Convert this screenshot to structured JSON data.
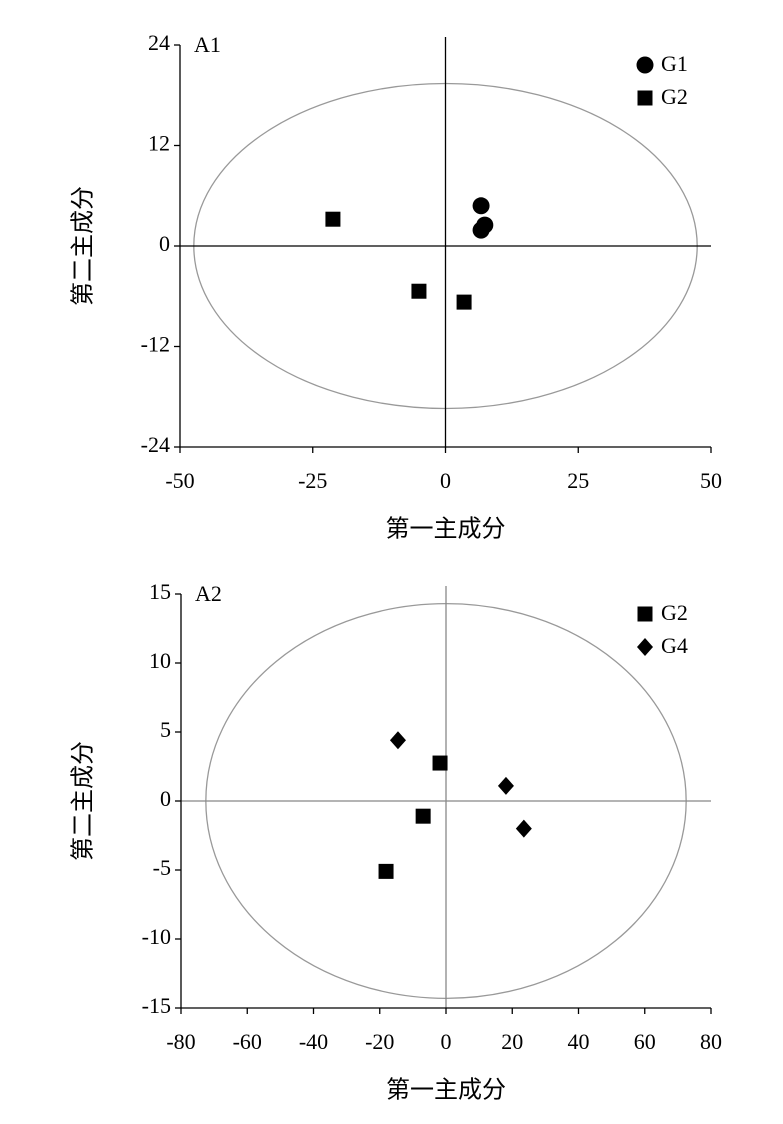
{
  "chart_data": [
    {
      "type": "scatter",
      "title": "A1",
      "x_label": "第一主成分",
      "y_label": "第二主成分",
      "xlim": [
        -50,
        50
      ],
      "xticks": [
        -50,
        -25,
        0,
        25,
        50
      ],
      "ylim": [
        -24,
        24
      ],
      "yticks": [
        -24,
        -12,
        0,
        12,
        24
      ],
      "ellipse": {
        "rx": 47.4,
        "ry": 19.4
      },
      "ellipse_color": "#999999",
      "zero_line_color": "#000000",
      "legend": "top-right",
      "series": [
        {
          "name": "G1",
          "color": "#000000",
          "marker": "circle",
          "x": [
            6.7,
            7.4,
            6.7
          ],
          "values": [
            4.8,
            2.5,
            1.9
          ]
        },
        {
          "name": "G2",
          "color": "#000000",
          "marker": "square",
          "x": [
            -21.2,
            -5.0,
            3.5
          ],
          "values": [
            3.2,
            -5.4,
            -6.7
          ]
        }
      ]
    },
    {
      "type": "scatter",
      "title": "A2",
      "x_label": "第一主成分",
      "y_label": "第二主成分",
      "xlim": [
        -80,
        80
      ],
      "xticks": [
        -80,
        -60,
        -40,
        -20,
        0,
        20,
        40,
        60,
        80
      ],
      "ylim": [
        -15,
        15
      ],
      "yticks": [
        -15,
        -10,
        -5,
        0,
        5,
        10,
        15
      ],
      "ellipse": {
        "rx": 72.5,
        "ry": 14.3
      },
      "ellipse_color": "#999999",
      "zero_line_color": "#888888",
      "legend": "top-right",
      "series": [
        {
          "name": "G2",
          "color": "#000000",
          "marker": "square",
          "x": [
            -1.8,
            -6.9,
            -18.1
          ],
          "values": [
            2.75,
            -1.1,
            -5.1
          ]
        },
        {
          "name": "G4",
          "color": "#000000",
          "marker": "diamond",
          "x": [
            -14.5,
            18.1,
            23.5
          ],
          "values": [
            4.4,
            1.1,
            -2.0
          ]
        }
      ]
    }
  ]
}
